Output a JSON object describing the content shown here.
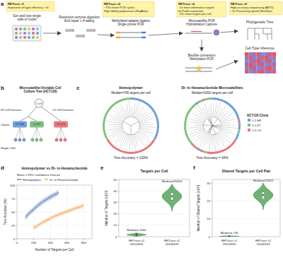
{
  "panel_a": {
    "label": "a",
    "notes": [
      {
        "title": "RETrace v1",
        "lines": [
          "Improved cell type efficiency ~4x"
        ]
      },
      {
        "title": "RETrace v2",
        "lines": [
          "~75% fewer PCR cycles",
          "High-fidelity polymerase (SeqAmp)"
        ]
      },
      {
        "title": "RETrace v2",
        "lines": [
          "~2x more informative targets",
          "4x Probe expansion",
          "~21x more targets per cell"
        ]
      },
      {
        "title": "RETrace v2",
        "lines": [
          "High-accuracy sequencing (AVITI)",
          "~5x Processing speed (Nextflow)"
        ]
      }
    ],
    "steps": [
      [
        "Sort and lyse single",
        "cells or nuclei"
      ],
      [
        "Restriction enzyme digestion",
        "End repair + A-tailing"
      ],
      [
        "Methylated adapter ligation",
        "Single primer PCR"
      ],
      [
        "Microsatellite PCR",
        "Hybridization Capture"
      ],
      [
        "Bisulfite conversion",
        "Methylation PCR"
      ]
    ],
    "outputs": [
      "Phylogenetic Tree",
      "Cell Type Inference"
    ]
  },
  "panel_b": {
    "label": "b",
    "title": [
      "Microsatellite-Unstable Cell",
      "Culture Tree (HCT116)"
    ],
    "root": "1 cell",
    "divisions": [
      "69 Cell Divisions",
      "52 Cell Divisions"
    ],
    "levels": [
      "Clones",
      "Single Cells"
    ],
    "clones": [
      {
        "name": "2-1-H9",
        "color": "#6f9fdc"
      },
      {
        "name": "2-1-F7",
        "color": "#7fc47f"
      },
      {
        "name": "1-1-C3",
        "color": "#e8797c"
      }
    ]
  },
  "panel_c": {
    "label": "c",
    "trees": [
      {
        "title": "Homopolymer",
        "subtitle": "Median=706 targets per cell",
        "accuracy": "Tree Accuracy = 100%"
      },
      {
        "title": "Di- to Hexanucleotide Microsatellites",
        "subtitle": "Median=1662 targets per cell",
        "accuracy": "Tree Accuracy = 64%"
      }
    ],
    "legend_title": "HCT116 Clone"
  },
  "chart_data": [
    {
      "panel": "d",
      "type": "line",
      "title": "Homopolymer vs Di- to Hexanucleotide",
      "xlabel": "Number of Targets per Cell",
      "ylabel": "Tree Accuracy (%)",
      "legend_title": "Mean ± 95% Confidence Interval",
      "legend": "top",
      "grid": true,
      "xlim": [
        0,
        900
      ],
      "xticks": [
        0,
        200,
        400,
        600,
        800
      ],
      "ylim": [
        0,
        100
      ],
      "yticks": [
        0,
        25,
        50,
        75,
        100
      ],
      "series": [
        {
          "name": "Homopolymer",
          "color": "#3a6bb5",
          "x": [
            100,
            150,
            200,
            250,
            300,
            350,
            400,
            450,
            500
          ],
          "values": [
            40,
            48,
            55,
            62,
            68,
            73,
            78,
            82,
            86
          ],
          "ci_low": [
            35,
            43,
            50,
            57,
            63,
            68,
            73,
            77,
            81
          ],
          "ci_high": [
            45,
            53,
            60,
            67,
            73,
            78,
            83,
            87,
            91
          ]
        },
        {
          "name": "Di- to Hexanucleotide",
          "color": "#f2a04a",
          "x": [
            200,
            250,
            300,
            350,
            400,
            450,
            500,
            550,
            600,
            650,
            700,
            750,
            800
          ],
          "values": [
            20,
            25,
            30,
            34,
            38,
            42,
            45,
            48,
            51,
            54,
            57,
            59,
            62
          ],
          "ci_low": [
            16,
            21,
            26,
            30,
            34,
            38,
            41,
            44,
            47,
            50,
            53,
            55,
            58
          ],
          "ci_high": [
            24,
            29,
            34,
            38,
            42,
            46,
            49,
            52,
            55,
            58,
            61,
            63,
            66
          ]
        }
      ]
    },
    {
      "panel": "e",
      "type": "violin",
      "title": "Targets per Cell",
      "ylabel": "Number of Targets (x10³)",
      "categories": [
        "RETrace v1\n20210920",
        "RETrace v2\n20240319"
      ],
      "values": [
        1.662,
        35.404
      ],
      "value_labels": [
        "Median= 1662",
        "Median=35404"
      ],
      "q1": [
        1.2,
        32.0
      ],
      "q3": [
        2.2,
        38.5
      ],
      "violin_min": [
        0.3,
        22.0
      ],
      "violin_max": [
        3.5,
        46.0
      ],
      "color": "#3e9a45",
      "data_labels": true,
      "grid": true,
      "ylim": [
        0,
        50
      ],
      "yticks": [
        0,
        10,
        20,
        30,
        40,
        50
      ]
    },
    {
      "panel": "f",
      "type": "violin",
      "title": "Shared Targets per Cell Pair",
      "ylabel": "Number of Shared Targets (x10³)",
      "categories": [
        "RETrace v1\n20210920",
        "RETrace v2\n20240319"
      ],
      "values": [
        0.236,
        23.355
      ],
      "value_labels": [
        "Median= 236",
        "Median=23355"
      ],
      "q1": [
        0.15,
        21.0
      ],
      "q3": [
        0.35,
        25.0
      ],
      "violin_min": [
        0.05,
        15.0
      ],
      "violin_max": [
        0.6,
        30.0
      ],
      "color": "#3e9a45",
      "data_labels": true,
      "grid": true,
      "ylim": [
        0,
        32
      ],
      "yticks": [
        0,
        10,
        20,
        30
      ]
    }
  ]
}
